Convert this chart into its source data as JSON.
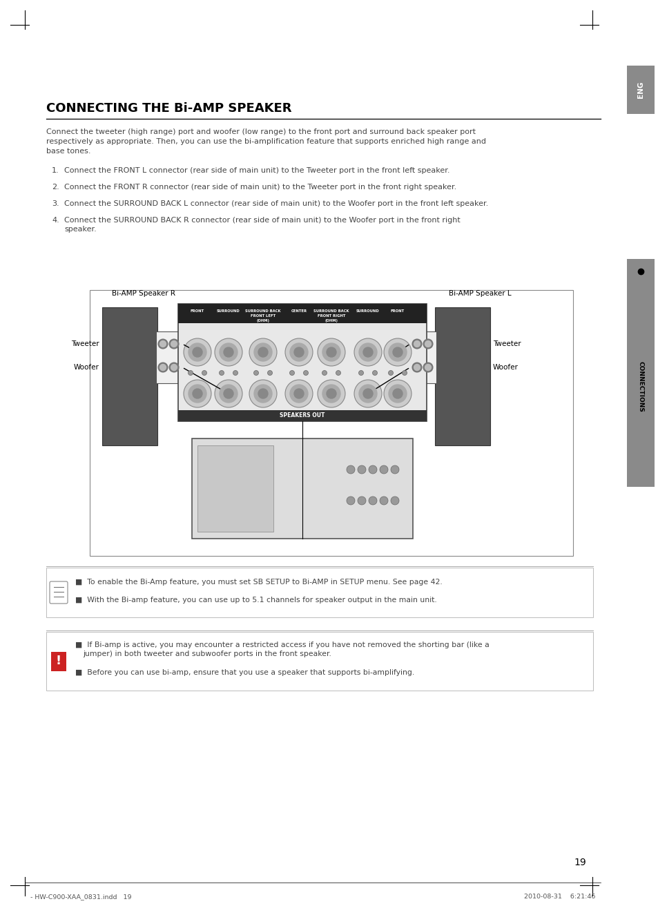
{
  "title": "CONNECTING THE Bi-AMP SPEAKER",
  "bg_color": "#ffffff",
  "text_color": "#000000",
  "dark_text": "#222222",
  "gray_text": "#444444",
  "intro_text": "Connect the tweeter (high range) port and woofer (low range) to the front port and surround back speaker port\nrespectively as appropriate. Then, you can use the bi-amplification feature that supports enriched high range and\nbase tones.",
  "steps": [
    "Connect the FRONT L connector (rear side of main unit) to the Tweeter port in the front left speaker.",
    "Connect the FRONT R connector (rear side of main unit) to the Tweeter port in the front right speaker.",
    "Connect the SURROUND BACK L connector (rear side of main unit) to the Woofer port in the front left speaker.",
    "Connect the SURROUND BACK R connector (rear side of main unit) to the Woofer port in the front right\nspeaker."
  ],
  "note1_lines": [
    "To enable the Bi-Amp feature, you must set SB SETUP to Bi-AMP in SETUP menu. See page 42.",
    "With the Bi-amp feature, you can use up to 5.1 channels for speaker output in the main unit."
  ],
  "note2_lines": [
    "If Bi-amp is active, you may encounter a restricted access if you have not removed the shorting bar (like a jumper) in both tweeter and subwoofer ports in the front speaker.",
    "Before you can use bi-amp, ensure that you use a speaker that supports bi-amplifying."
  ],
  "note2_line1_wrap": "jumper) in both tweeter and subwoofer ports in the front speaker.",
  "speaker_r_label": "Bi-AMP Speaker R",
  "speaker_l_label": "Bi-AMP Speaker L",
  "tweeter_label": "Tweeter",
  "woofer_label": "Woofer",
  "page_number": "19",
  "footer_left": "- HW-C900-XAA_0831.indd   19",
  "footer_right": "2010-08-31    6:21:46",
  "sidebar_text": "CONNECTIONS",
  "sidebar_bg": "#8a8a8a",
  "eng_bg": "#8a8a8a"
}
